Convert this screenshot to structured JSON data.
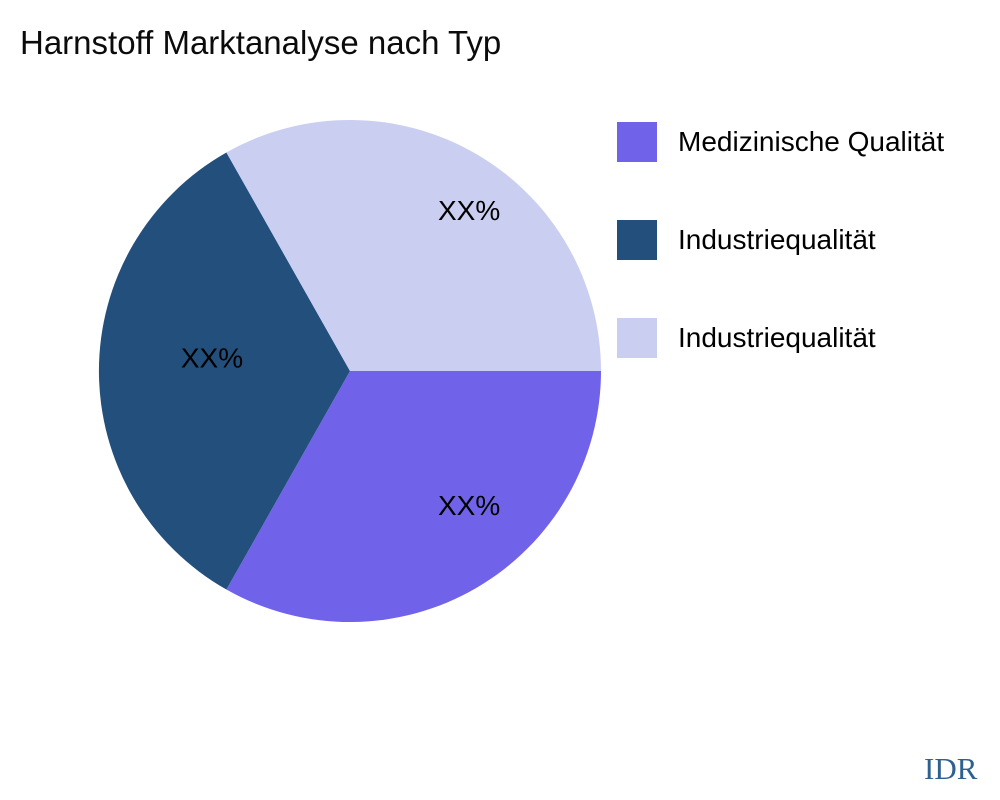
{
  "chart_data": {
    "type": "pie",
    "title": "Harnstoff Marktanalyse nach Typ",
    "start_angle_deg": 0,
    "direction": "clockwise",
    "legend_position": "right",
    "values_masked": true,
    "slices": [
      {
        "label": "Medizinische Qualität",
        "pct_label": "XX%",
        "angle_deg": 119.5,
        "color": "#7063E9"
      },
      {
        "label": "Industriequalität",
        "pct_label": "XX%",
        "angle_deg": 121.0,
        "color": "#234F7C"
      },
      {
        "label": "Industriequalität",
        "pct_label": "XX%",
        "angle_deg": 119.5,
        "color": "#CACEF0"
      }
    ]
  },
  "watermark": {
    "text": "IDR",
    "color": "#2E6090"
  },
  "colors": {
    "background": "#FFFFFF",
    "text": "#000000"
  }
}
